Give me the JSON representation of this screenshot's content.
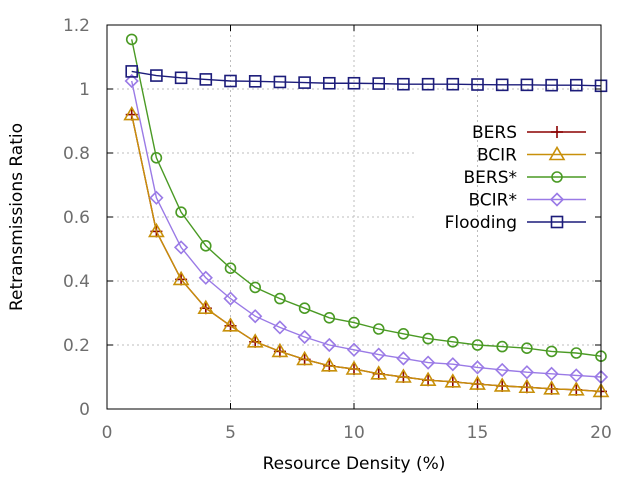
{
  "chart_data": {
    "type": "line",
    "xlabel": "Resource Density (%)",
    "ylabel": "Retransmissions Ratio",
    "xlim": [
      0,
      20
    ],
    "ylim": [
      0,
      1.2
    ],
    "xticks": [
      "0",
      "5",
      "10",
      "15",
      "20"
    ],
    "yticks": [
      "0",
      "0.2",
      "0.4",
      "0.6",
      "0.8",
      "1",
      "1.2"
    ],
    "grid": true,
    "legend_position": "right",
    "x": [
      1,
      2,
      3,
      4,
      5,
      6,
      7,
      8,
      9,
      10,
      11,
      12,
      13,
      14,
      15,
      16,
      17,
      18,
      19,
      20
    ],
    "series": [
      {
        "name": "BERS",
        "color": "#8b0000",
        "marker": "plus",
        "values": [
          0.92,
          0.555,
          0.405,
          0.315,
          0.26,
          0.21,
          0.18,
          0.155,
          0.135,
          0.125,
          0.11,
          0.1,
          0.09,
          0.085,
          0.078,
          0.072,
          0.068,
          0.063,
          0.06,
          0.055
        ]
      },
      {
        "name": "BCIR",
        "color": "#c8900a",
        "marker": "triangle",
        "values": [
          0.92,
          0.555,
          0.405,
          0.315,
          0.26,
          0.21,
          0.18,
          0.155,
          0.135,
          0.125,
          0.11,
          0.1,
          0.09,
          0.085,
          0.078,
          0.072,
          0.068,
          0.063,
          0.06,
          0.055
        ]
      },
      {
        "name": "BERS*",
        "color": "#4a9a24",
        "marker": "circle",
        "values": [
          1.155,
          0.785,
          0.615,
          0.51,
          0.44,
          0.38,
          0.345,
          0.315,
          0.285,
          0.27,
          0.25,
          0.235,
          0.22,
          0.21,
          0.2,
          0.195,
          0.19,
          0.18,
          0.175,
          0.165
        ]
      },
      {
        "name": "BCIR*",
        "color": "#9a7ae6",
        "marker": "diamond",
        "values": [
          1.025,
          0.66,
          0.505,
          0.41,
          0.345,
          0.29,
          0.255,
          0.225,
          0.2,
          0.185,
          0.17,
          0.158,
          0.145,
          0.14,
          0.13,
          0.122,
          0.115,
          0.11,
          0.105,
          0.1
        ]
      },
      {
        "name": "Flooding",
        "color": "#1c1c7a",
        "marker": "square",
        "values": [
          1.055,
          1.042,
          1.035,
          1.03,
          1.025,
          1.024,
          1.022,
          1.02,
          1.018,
          1.018,
          1.017,
          1.015,
          1.015,
          1.015,
          1.014,
          1.013,
          1.013,
          1.012,
          1.012,
          1.01
        ]
      }
    ]
  }
}
